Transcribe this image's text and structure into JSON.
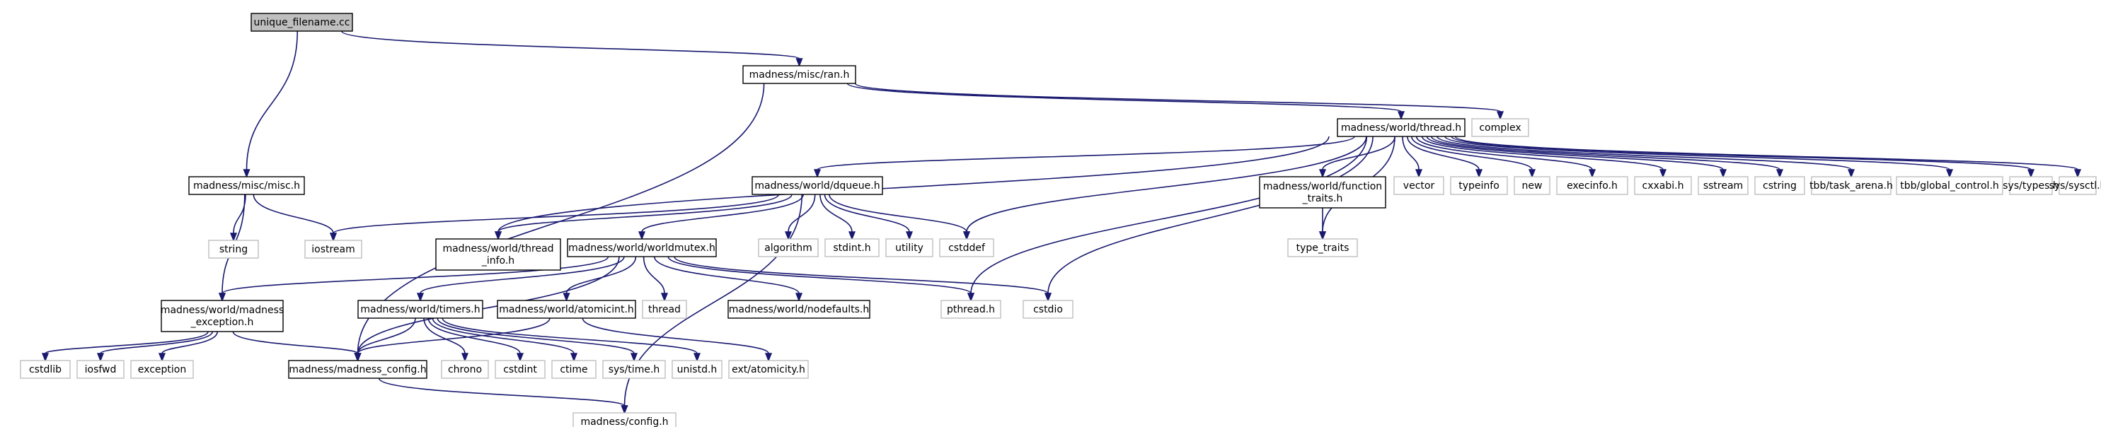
{
  "nodes": [
    {
      "id": "unique_filename",
      "label": [
        "unique_filename.cc"
      ],
      "style": "root",
      "cx": 0,
      "cy": 0
    },
    {
      "id": "ran",
      "label": [
        "madness/misc/ran.h"
      ],
      "style": "linked"
    },
    {
      "id": "misc",
      "label": [
        "madness/misc/misc.h"
      ],
      "style": "linked"
    },
    {
      "id": "thread",
      "label": [
        "madness/world/thread.h"
      ],
      "style": "linked"
    },
    {
      "id": "complex",
      "label": [
        "complex"
      ],
      "style": "external"
    },
    {
      "id": "dqueue",
      "label": [
        "madness/world/dqueue.h"
      ],
      "style": "linked"
    },
    {
      "id": "function_traits",
      "label": [
        "madness/world/function",
        "_traits.h"
      ],
      "style": "linked"
    },
    {
      "id": "vector",
      "label": [
        "vector"
      ],
      "style": "external"
    },
    {
      "id": "typeinfo",
      "label": [
        "typeinfo"
      ],
      "style": "external"
    },
    {
      "id": "new",
      "label": [
        "new"
      ],
      "style": "external"
    },
    {
      "id": "execinfo",
      "label": [
        "execinfo.h"
      ],
      "style": "external"
    },
    {
      "id": "cxxabi",
      "label": [
        "cxxabi.h"
      ],
      "style": "external"
    },
    {
      "id": "sstream",
      "label": [
        "sstream"
      ],
      "style": "external"
    },
    {
      "id": "cstring",
      "label": [
        "cstring"
      ],
      "style": "external"
    },
    {
      "id": "task_arena",
      "label": [
        "tbb/task_arena.h"
      ],
      "style": "external"
    },
    {
      "id": "global_control",
      "label": [
        "tbb/global_control.h"
      ],
      "style": "external"
    },
    {
      "id": "sys_types",
      "label": [
        "sys/types.h"
      ],
      "style": "external"
    },
    {
      "id": "sys_sysctl",
      "label": [
        "sys/sysctl.h"
      ],
      "style": "external"
    },
    {
      "id": "string",
      "label": [
        "string"
      ],
      "style": "external"
    },
    {
      "id": "iostream",
      "label": [
        "iostream"
      ],
      "style": "external"
    },
    {
      "id": "thread_info",
      "label": [
        "madness/world/thread",
        "_info.h"
      ],
      "style": "linked"
    },
    {
      "id": "worldmutex",
      "label": [
        "madness/world/worldmutex.h"
      ],
      "style": "linked"
    },
    {
      "id": "algorithm",
      "label": [
        "algorithm"
      ],
      "style": "external"
    },
    {
      "id": "stdint",
      "label": [
        "stdint.h"
      ],
      "style": "external"
    },
    {
      "id": "utility",
      "label": [
        "utility"
      ],
      "style": "external"
    },
    {
      "id": "cstddef",
      "label": [
        "cstddef"
      ],
      "style": "external"
    },
    {
      "id": "type_traits",
      "label": [
        "type_traits"
      ],
      "style": "external"
    },
    {
      "id": "madness_exception",
      "label": [
        "madness/world/madness",
        "_exception.h"
      ],
      "style": "linked"
    },
    {
      "id": "timers",
      "label": [
        "madness/world/timers.h"
      ],
      "style": "linked"
    },
    {
      "id": "atomicint",
      "label": [
        "madness/world/atomicint.h"
      ],
      "style": "linked"
    },
    {
      "id": "thread_std",
      "label": [
        "thread"
      ],
      "style": "external"
    },
    {
      "id": "nodefaults",
      "label": [
        "madness/world/nodefaults.h"
      ],
      "style": "linked"
    },
    {
      "id": "pthread",
      "label": [
        "pthread.h"
      ],
      "style": "external"
    },
    {
      "id": "cstdio",
      "label": [
        "cstdio"
      ],
      "style": "external"
    },
    {
      "id": "cstdlib",
      "label": [
        "cstdlib"
      ],
      "style": "external"
    },
    {
      "id": "iosfwd",
      "label": [
        "iosfwd"
      ],
      "style": "external"
    },
    {
      "id": "exception",
      "label": [
        "exception"
      ],
      "style": "external"
    },
    {
      "id": "madness_config",
      "label": [
        "madness/madness_config.h"
      ],
      "style": "linked"
    },
    {
      "id": "chrono",
      "label": [
        "chrono"
      ],
      "style": "external"
    },
    {
      "id": "cstdint",
      "label": [
        "cstdint"
      ],
      "style": "external"
    },
    {
      "id": "ctime",
      "label": [
        "ctime"
      ],
      "style": "external"
    },
    {
      "id": "sys_time",
      "label": [
        "sys/time.h"
      ],
      "style": "external"
    },
    {
      "id": "unistd",
      "label": [
        "unistd.h"
      ],
      "style": "external"
    },
    {
      "id": "atomicity",
      "label": [
        "ext/atomicity.h"
      ],
      "style": "external"
    },
    {
      "id": "config",
      "label": [
        "madness/config.h"
      ],
      "style": "external"
    }
  ],
  "edges": [
    [
      "unique_filename",
      "ran"
    ],
    [
      "unique_filename",
      "misc"
    ],
    [
      "ran",
      "madness_config"
    ],
    [
      "ran",
      "thread"
    ],
    [
      "ran",
      "complex"
    ],
    [
      "misc",
      "madness_exception"
    ],
    [
      "misc",
      "string"
    ],
    [
      "misc",
      "iostream"
    ],
    [
      "thread",
      "dqueue"
    ],
    [
      "thread",
      "function_traits"
    ],
    [
      "thread",
      "thread_info"
    ],
    [
      "thread",
      "cstddef"
    ],
    [
      "thread",
      "pthread"
    ],
    [
      "thread",
      "type_traits"
    ],
    [
      "thread",
      "cstdio"
    ],
    [
      "thread",
      "vector"
    ],
    [
      "thread",
      "typeinfo"
    ],
    [
      "thread",
      "new"
    ],
    [
      "thread",
      "execinfo"
    ],
    [
      "thread",
      "cxxabi"
    ],
    [
      "thread",
      "sstream"
    ],
    [
      "thread",
      "cstring"
    ],
    [
      "thread",
      "task_arena"
    ],
    [
      "thread",
      "global_control"
    ],
    [
      "thread",
      "sys_types"
    ],
    [
      "thread",
      "sys_sysctl"
    ],
    [
      "dqueue",
      "iostream"
    ],
    [
      "dqueue",
      "thread_info"
    ],
    [
      "dqueue",
      "worldmutex"
    ],
    [
      "dqueue",
      "algorithm"
    ],
    [
      "dqueue",
      "stdint"
    ],
    [
      "dqueue",
      "utility"
    ],
    [
      "dqueue",
      "cstddef"
    ],
    [
      "dqueue",
      "config"
    ],
    [
      "function_traits",
      "type_traits"
    ],
    [
      "worldmutex",
      "madness_exception"
    ],
    [
      "worldmutex",
      "madness_config"
    ],
    [
      "worldmutex",
      "timers"
    ],
    [
      "worldmutex",
      "atomicint"
    ],
    [
      "worldmutex",
      "thread_std"
    ],
    [
      "worldmutex",
      "nodefaults"
    ],
    [
      "worldmutex",
      "pthread"
    ],
    [
      "worldmutex",
      "cstdio"
    ],
    [
      "madness_exception",
      "cstdlib"
    ],
    [
      "madness_exception",
      "iosfwd"
    ],
    [
      "madness_exception",
      "exception"
    ],
    [
      "madness_exception",
      "madness_config"
    ],
    [
      "timers",
      "madness_config"
    ],
    [
      "timers",
      "chrono"
    ],
    [
      "timers",
      "cstdint"
    ],
    [
      "timers",
      "ctime"
    ],
    [
      "timers",
      "sys_time"
    ],
    [
      "timers",
      "unistd"
    ],
    [
      "atomicint",
      "madness_config"
    ],
    [
      "atomicint",
      "atomicity"
    ],
    [
      "madness_config",
      "config"
    ]
  ],
  "colors": {
    "edge": "#191970",
    "root_fill": "#bfbfbf",
    "linked_border": "#000000",
    "external_border": "#bfbfbf",
    "text": "#000000"
  }
}
